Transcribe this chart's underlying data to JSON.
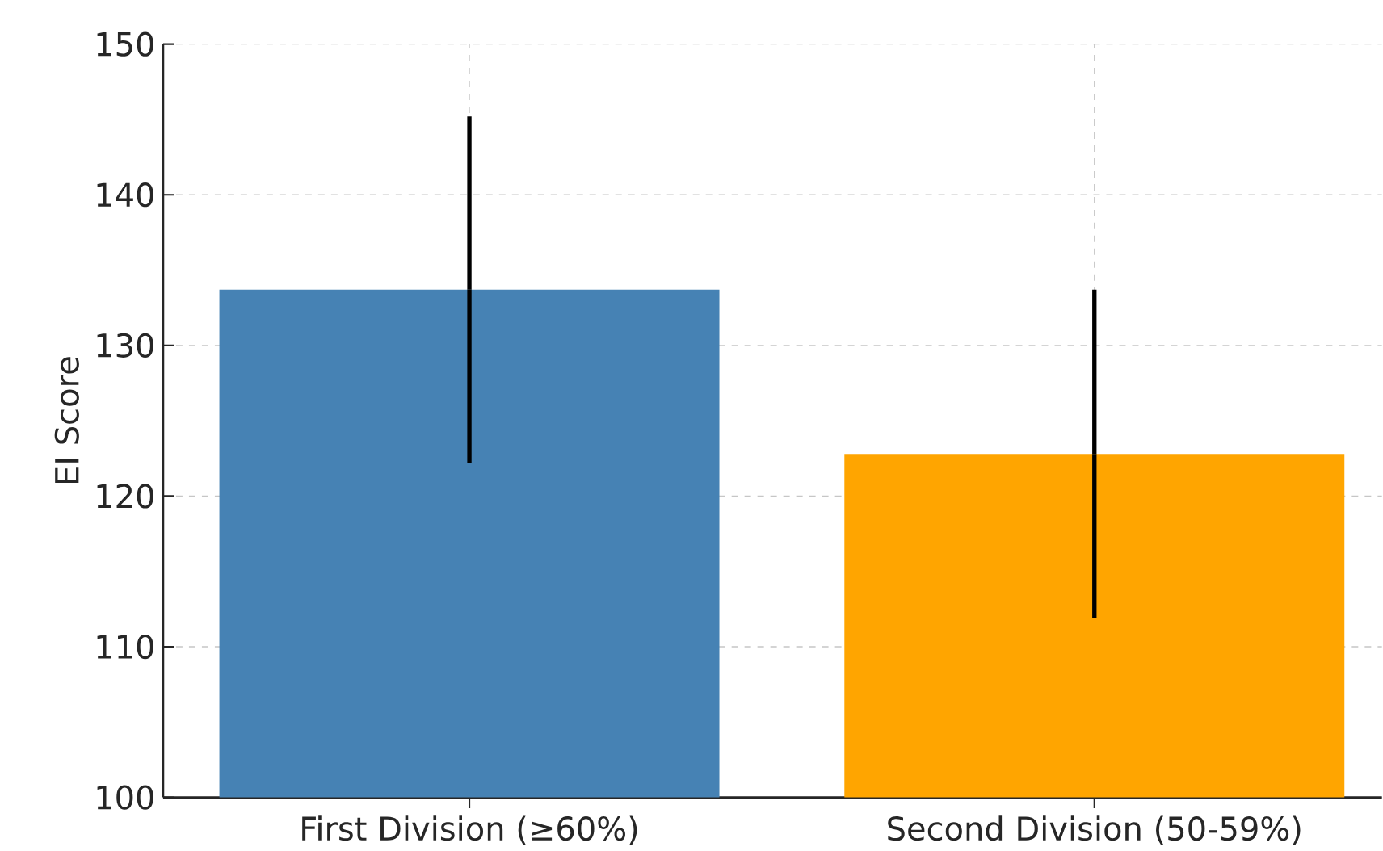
{
  "chart_data": {
    "type": "bar",
    "ylabel": "EI Score",
    "categories": [
      "First Division (≥60%)",
      "Second Division (50-59%)"
    ],
    "values": [
      133.7,
      122.8
    ],
    "colors": [
      "#4682b4",
      "#ffa500"
    ],
    "errors": [
      11.5,
      10.9
    ],
    "ylim": [
      100,
      150
    ],
    "yticks": [
      100,
      110,
      120,
      130,
      140,
      150
    ],
    "grid": true
  }
}
